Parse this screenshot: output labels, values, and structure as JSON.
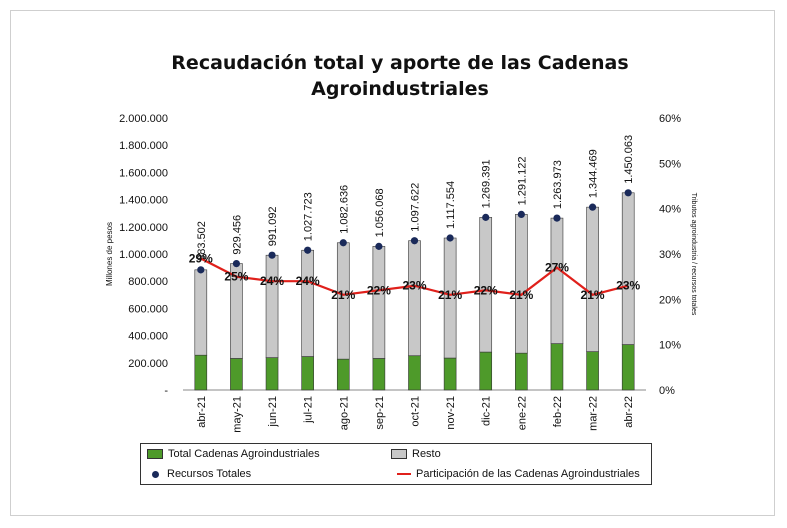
{
  "chart_data": {
    "type": "bar",
    "title": "Recaudación total y aporte de las Cadenas Agroindustriales",
    "ylabel": "Millones de pesos",
    "y2label": "Tributos agroindustria / recursos totales",
    "ylim": [
      0,
      2000000
    ],
    "y2lim": [
      0,
      0.6
    ],
    "y_ticks": [
      "-",
      "200.000",
      "400.000",
      "600.000",
      "800.000",
      "1.000.000",
      "1.200.000",
      "1.400.000",
      "1.600.000",
      "1.800.000",
      "2.000.000"
    ],
    "y2_ticks": [
      "0%",
      "10%",
      "20%",
      "30%",
      "40%",
      "50%",
      "60%"
    ],
    "categories": [
      "abr-21",
      "may-21",
      "jun-21",
      "jul-21",
      "ago-21",
      "sep-21",
      "oct-21",
      "nov-21",
      "dic-21",
      "ene-22",
      "feb-22",
      "mar-22",
      "abr-22"
    ],
    "series": [
      {
        "name": "Total Cadenas Agroindustriales",
        "kind": "bar",
        "color": "#4e9a2a",
        "values": [
          256000,
          232000,
          238000,
          246000,
          227000,
          232000,
          252000,
          235000,
          279000,
          271000,
          341000,
          282000,
          334000
        ]
      },
      {
        "name": "Resto",
        "kind": "bar",
        "color": "#c8c8c8",
        "values": [
          627502,
          697456,
          753092,
          781723,
          855636,
          824068,
          845622,
          882554,
          990391,
          1020122,
          922973,
          1062469,
          1116063
        ]
      },
      {
        "name": "Recursos Totales",
        "kind": "marker",
        "color": "#1a2a5a",
        "values": [
          883502,
          929456,
          991092,
          1027723,
          1082636,
          1056068,
          1097622,
          1117554,
          1269391,
          1291122,
          1263973,
          1344469,
          1450063
        ],
        "labels": [
          "883.502",
          "929.456",
          "991.092",
          "1.027.723",
          "1.082.636",
          "1.056.068",
          "1.097.622",
          "1.117.554",
          "1.269.391",
          "1.291.122",
          "1.263.973",
          "1.344.469",
          "1.450.063"
        ]
      },
      {
        "name": "Participación de las Cadenas Agroindustriales",
        "kind": "line",
        "axis": "y2",
        "color": "#e0201b",
        "values": [
          0.29,
          0.25,
          0.24,
          0.24,
          0.21,
          0.22,
          0.23,
          0.21,
          0.22,
          0.21,
          0.27,
          0.21,
          0.23
        ],
        "labels": [
          "29%",
          "25%",
          "24%",
          "24%",
          "21%",
          "22%",
          "23%",
          "21%",
          "22%",
          "21%",
          "27%",
          "21%",
          "23%"
        ]
      }
    ],
    "legend": {
      "position": "bottom"
    }
  }
}
